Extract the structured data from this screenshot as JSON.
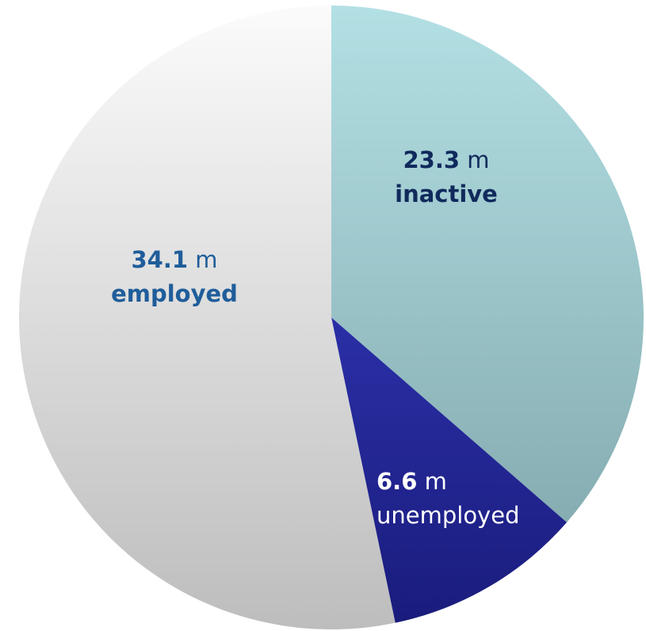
{
  "chart_data": {
    "type": "pie",
    "title": "",
    "unit": "m",
    "slices": [
      {
        "name": "inactive",
        "value": 23.3,
        "value_label": "23.3",
        "unit": "m",
        "category_label": "inactive",
        "category_bold": true,
        "value_color": "#102a5c",
        "unit_color": "#102a5c",
        "category_color": "#102a5c",
        "fill_top": "#b3e0e4",
        "fill_bottom": "#86adb2"
      },
      {
        "name": "unemployed",
        "value": 6.6,
        "value_label": "6.6",
        "unit": "m",
        "category_label": "unemployed",
        "category_bold": false,
        "value_color": "#ffffff",
        "unit_color": "#ffffff",
        "category_color": "#ffffff",
        "fill_top": "#2a2fa6",
        "fill_bottom": "#1a1c7c"
      },
      {
        "name": "employed",
        "value": 34.1,
        "value_label": "34.1",
        "unit": "m",
        "category_label": "employed",
        "category_bold": true,
        "value_color": "#1f5d9a",
        "unit_color": "#1f5d9a",
        "category_color": "#1f5d9a",
        "fill_top": "#fbfbfb",
        "fill_bottom": "#bdbdbd"
      }
    ],
    "start_angle_deg": 0,
    "direction": "clockwise",
    "legend": "none",
    "labels": "inside-slices"
  }
}
